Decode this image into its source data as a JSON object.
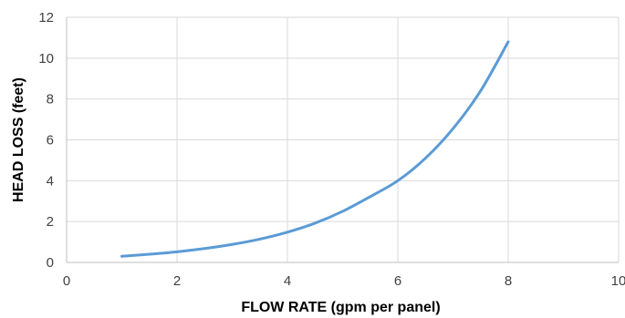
{
  "chart_data": {
    "type": "line",
    "xlabel": "FLOW RATE (gpm per panel)",
    "ylabel": "HEAD LOSS (feet)",
    "xlim": [
      0,
      10
    ],
    "ylim": [
      0,
      12
    ],
    "x_ticks": [
      "0",
      "2",
      "4",
      "6",
      "8",
      "10"
    ],
    "y_ticks": [
      "0",
      "2",
      "4",
      "6",
      "8",
      "10",
      "12"
    ],
    "grid": true,
    "legend": "none",
    "series": [
      {
        "color": "#5b9bd5",
        "x": [
          1.0,
          1.5,
          2.0,
          2.5,
          3.0,
          3.5,
          4.0,
          4.5,
          5.0,
          5.5,
          6.0,
          6.5,
          7.0,
          7.5,
          8.0
        ],
        "y": [
          0.3,
          0.4,
          0.52,
          0.68,
          0.88,
          1.14,
          1.48,
          1.92,
          2.5,
          3.22,
          4.0,
          5.1,
          6.55,
          8.4,
          10.8
        ]
      }
    ]
  }
}
